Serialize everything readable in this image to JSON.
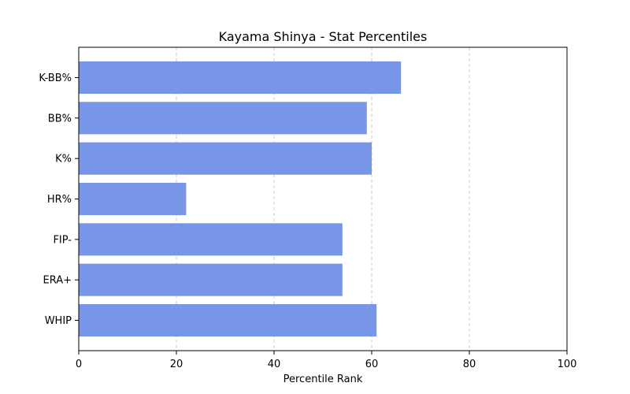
{
  "chart_data": {
    "type": "bar",
    "orientation": "horizontal",
    "title": "Kayama Shinya - Stat Percentiles",
    "xlabel": "Percentile Rank",
    "ylabel": "",
    "categories": [
      "K-BB%",
      "BB%",
      "K%",
      "HR%",
      "FIP-",
      "ERA+",
      "WHIP"
    ],
    "values": [
      66,
      59,
      60,
      22,
      54,
      54,
      61
    ],
    "xlim": [
      0,
      100
    ],
    "xticks": [
      0,
      20,
      40,
      60,
      80,
      100
    ],
    "grid": "x-dashed",
    "bar_color": "#7896e8"
  }
}
